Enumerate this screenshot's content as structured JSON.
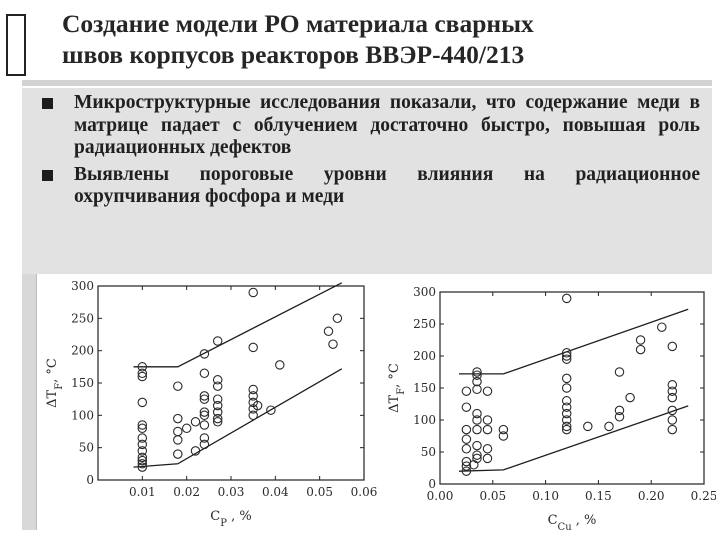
{
  "title": {
    "line1": "Создание модели РО материала сварных",
    "line2": "швов корпусов реакторов ВВЭР-440/213"
  },
  "bullets": [
    "Микроструктурные исследования показали, что содержание меди в матрице падает с облучением достаточно быстро, повышая роль радиационных дефектов",
    "Выявлены пороговые уровни влияния на радиационное охрупчивания фосфора и меди"
  ],
  "chart_data": [
    {
      "type": "scatter",
      "ylabel": "ΔT",
      "ylabel_sub": "F",
      "ylabel_unit": ", °C",
      "xlabel": "C",
      "xlabel_sub": "P",
      "xlabel_unit": " ,  %",
      "xlim": [
        0.0,
        0.06
      ],
      "ylim": [
        0,
        300
      ],
      "xticks": [
        "0.01",
        "0.02",
        "0.03",
        "0.04",
        "0.05",
        "0.06"
      ],
      "xtick_values": [
        0.01,
        0.02,
        0.03,
        0.04,
        0.05,
        0.06
      ],
      "yticks": [
        "0",
        "50",
        "100",
        "150",
        "200",
        "250",
        "300"
      ],
      "ytick_values": [
        0,
        50,
        100,
        150,
        200,
        250,
        300
      ],
      "points": [
        [
          0.01,
          175
        ],
        [
          0.01,
          165
        ],
        [
          0.01,
          160
        ],
        [
          0.01,
          120
        ],
        [
          0.01,
          85
        ],
        [
          0.01,
          80
        ],
        [
          0.01,
          65
        ],
        [
          0.01,
          55
        ],
        [
          0.01,
          45
        ],
        [
          0.01,
          35
        ],
        [
          0.01,
          30
        ],
        [
          0.01,
          25
        ],
        [
          0.01,
          20
        ],
        [
          0.018,
          145
        ],
        [
          0.018,
          95
        ],
        [
          0.018,
          75
        ],
        [
          0.018,
          62
        ],
        [
          0.018,
          40
        ],
        [
          0.02,
          80
        ],
        [
          0.022,
          90
        ],
        [
          0.022,
          45
        ],
        [
          0.024,
          195
        ],
        [
          0.024,
          165
        ],
        [
          0.024,
          130
        ],
        [
          0.024,
          125
        ],
        [
          0.024,
          105
        ],
        [
          0.024,
          100
        ],
        [
          0.024,
          85
        ],
        [
          0.024,
          65
        ],
        [
          0.024,
          55
        ],
        [
          0.027,
          215
        ],
        [
          0.027,
          155
        ],
        [
          0.027,
          145
        ],
        [
          0.027,
          125
        ],
        [
          0.027,
          115
        ],
        [
          0.027,
          105
        ],
        [
          0.027,
          95
        ],
        [
          0.027,
          90
        ],
        [
          0.035,
          290
        ],
        [
          0.035,
          205
        ],
        [
          0.035,
          140
        ],
        [
          0.035,
          130
        ],
        [
          0.035,
          120
        ],
        [
          0.035,
          110
        ],
        [
          0.035,
          100
        ],
        [
          0.036,
          115
        ],
        [
          0.039,
          108
        ],
        [
          0.041,
          178
        ],
        [
          0.052,
          230
        ],
        [
          0.053,
          210
        ],
        [
          0.054,
          250
        ]
      ],
      "lines": [
        {
          "name": "upper",
          "x": [
            0.008,
            0.018,
            0.055
          ],
          "y": [
            175,
            175,
            305
          ]
        },
        {
          "name": "lower",
          "x": [
            0.008,
            0.018,
            0.055
          ],
          "y": [
            20,
            25,
            172
          ]
        }
      ]
    },
    {
      "type": "scatter",
      "ylabel": "ΔT",
      "ylabel_sub": "F",
      "ylabel_unit": ", °C",
      "xlabel": "C",
      "xlabel_sub": "Cu",
      "xlabel_unit": " ,  %",
      "xlim": [
        0.0,
        0.25
      ],
      "ylim": [
        0,
        300
      ],
      "xticks": [
        "0.00",
        "0.05",
        "0.10",
        "0.15",
        "0.20",
        "0.25"
      ],
      "xtick_values": [
        0.0,
        0.05,
        0.1,
        0.15,
        0.2,
        0.25
      ],
      "yticks": [
        "0",
        "50",
        "100",
        "150",
        "200",
        "250",
        "300"
      ],
      "ytick_values": [
        0,
        50,
        100,
        150,
        200,
        250,
        300
      ],
      "points": [
        [
          0.025,
          145
        ],
        [
          0.025,
          120
        ],
        [
          0.025,
          85
        ],
        [
          0.025,
          70
        ],
        [
          0.025,
          55
        ],
        [
          0.025,
          35
        ],
        [
          0.025,
          28
        ],
        [
          0.025,
          20
        ],
        [
          0.032,
          30
        ],
        [
          0.035,
          175
        ],
        [
          0.035,
          170
        ],
        [
          0.035,
          160
        ],
        [
          0.035,
          148
        ],
        [
          0.035,
          110
        ],
        [
          0.035,
          100
        ],
        [
          0.035,
          85
        ],
        [
          0.035,
          60
        ],
        [
          0.035,
          45
        ],
        [
          0.035,
          40
        ],
        [
          0.045,
          145
        ],
        [
          0.045,
          100
        ],
        [
          0.045,
          85
        ],
        [
          0.045,
          55
        ],
        [
          0.045,
          40
        ],
        [
          0.06,
          85
        ],
        [
          0.06,
          75
        ],
        [
          0.12,
          290
        ],
        [
          0.12,
          205
        ],
        [
          0.12,
          200
        ],
        [
          0.12,
          195
        ],
        [
          0.12,
          165
        ],
        [
          0.12,
          150
        ],
        [
          0.12,
          130
        ],
        [
          0.12,
          120
        ],
        [
          0.12,
          110
        ],
        [
          0.12,
          100
        ],
        [
          0.12,
          90
        ],
        [
          0.12,
          85
        ],
        [
          0.14,
          90
        ],
        [
          0.16,
          90
        ],
        [
          0.17,
          175
        ],
        [
          0.17,
          115
        ],
        [
          0.17,
          105
        ],
        [
          0.18,
          135
        ],
        [
          0.19,
          225
        ],
        [
          0.19,
          210
        ],
        [
          0.21,
          245
        ],
        [
          0.22,
          215
        ],
        [
          0.22,
          155
        ],
        [
          0.22,
          145
        ],
        [
          0.22,
          135
        ],
        [
          0.22,
          115
        ],
        [
          0.22,
          100
        ],
        [
          0.22,
          85
        ]
      ],
      "lines": [
        {
          "name": "upper",
          "x": [
            0.018,
            0.06,
            0.235
          ],
          "y": [
            172,
            172,
            273
          ]
        },
        {
          "name": "lower",
          "x": [
            0.018,
            0.06,
            0.235
          ],
          "y": [
            20,
            22,
            122
          ]
        }
      ]
    }
  ]
}
